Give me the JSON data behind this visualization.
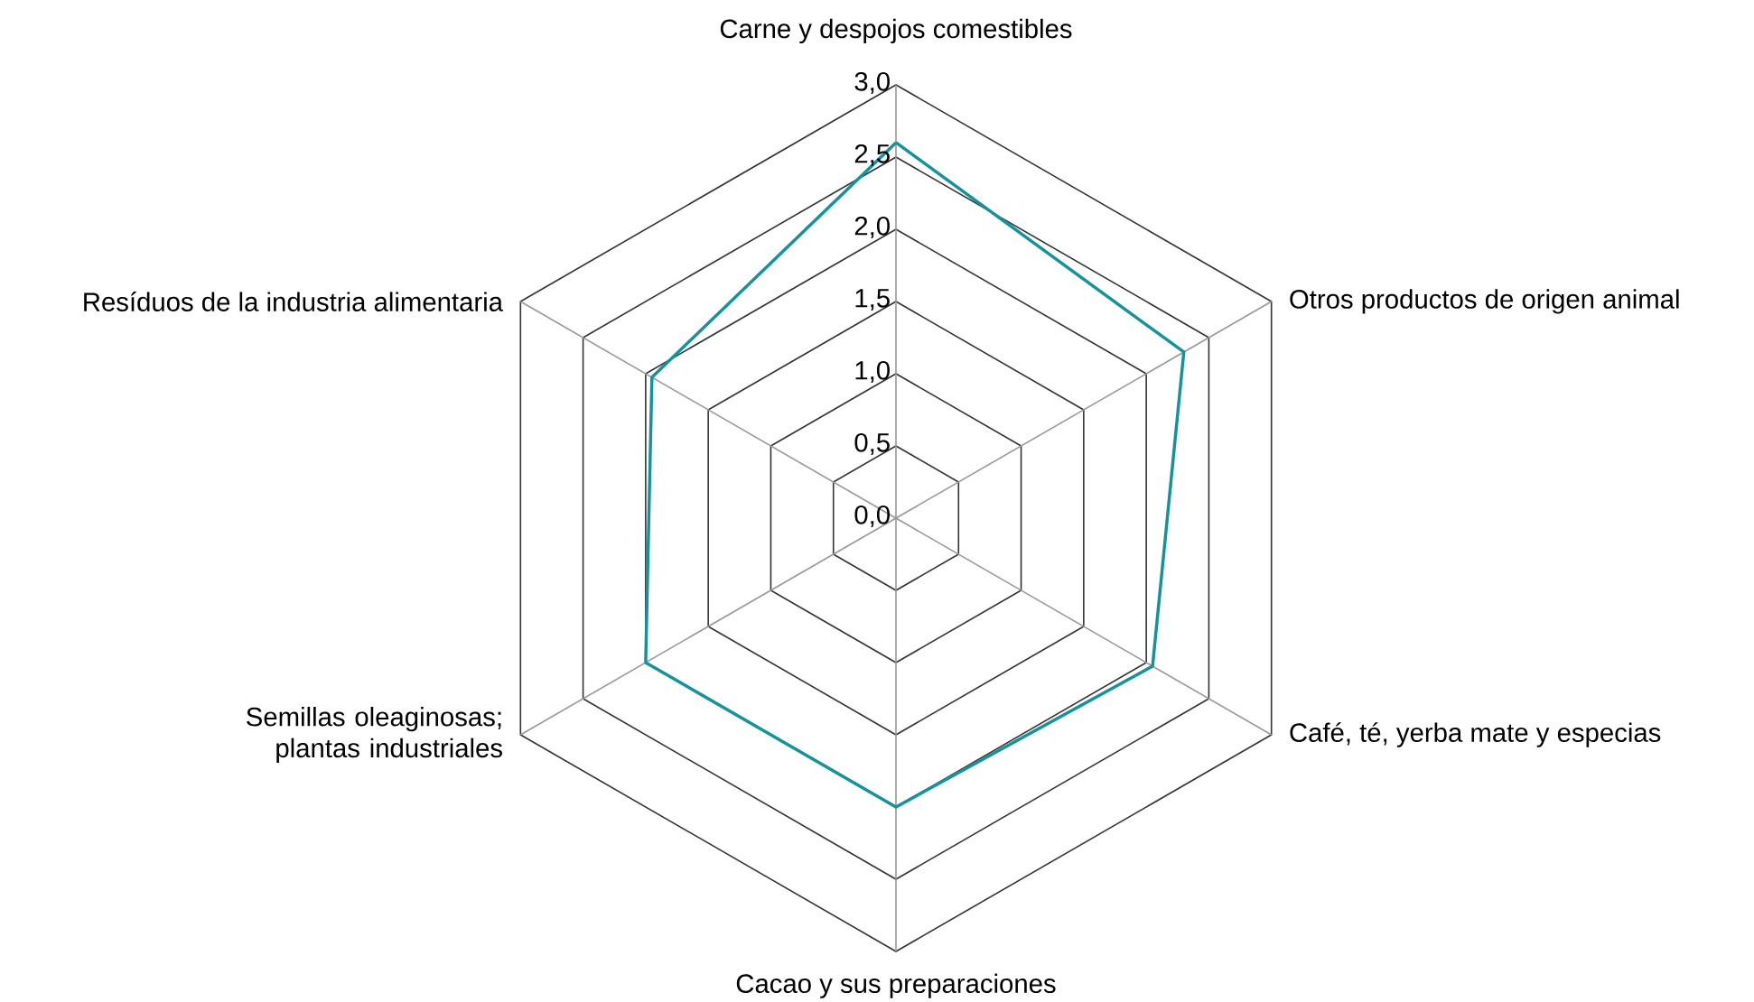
{
  "chart_data": {
    "type": "radar",
    "categories": [
      "Carne y despojos comestibles",
      "Otros productos de origen animal",
      "Café, té, yerba mate y especias",
      "Cacao y sus preparaciones",
      "Semillas oleaginosas; plantas industriales",
      "Resíduos de la industria alimentaria"
    ],
    "series": [
      {
        "color": "#14939c",
        "values": [
          2.6,
          2.3,
          2.05,
          2.0,
          2.0,
          1.95
        ]
      }
    ],
    "ylim": [
      0,
      3
    ],
    "yticks": [
      {
        "value": 0,
        "label": "0,0"
      },
      {
        "value": 0.5,
        "label": "0,5"
      },
      {
        "value": 1,
        "label": "1,0"
      },
      {
        "value": 1.5,
        "label": "1,5"
      },
      {
        "value": 2,
        "label": "2,0"
      },
      {
        "value": 2.5,
        "label": "2,5"
      },
      {
        "value": 3,
        "label": "3,0"
      }
    ],
    "grid": true
  }
}
